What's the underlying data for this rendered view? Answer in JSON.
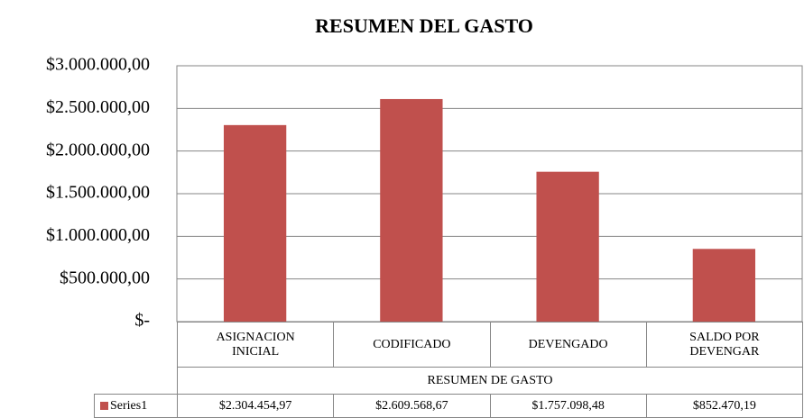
{
  "chart_data": {
    "type": "bar",
    "title": "RESUMEN DEL GASTO",
    "categories": [
      "ASIGNACION INICIAL",
      "CODIFICADO",
      "DEVENGADO",
      "SALDO POR DEVENGAR"
    ],
    "xlabel": "RESUMEN DE GASTO",
    "series": [
      {
        "name": "Series1",
        "color": "#c0504d",
        "values": [
          2304454.97,
          2609568.67,
          1757098.48,
          852470.19
        ],
        "value_labels": [
          "$2.304.454,97",
          "$2.609.568,67",
          "$1.757.098,48",
          "$852.470,19"
        ]
      }
    ],
    "ylim": [
      0,
      3000000
    ],
    "yticks": [
      {
        "value": 0,
        "label": "$-"
      },
      {
        "value": 500000,
        "label": "$500.000,00"
      },
      {
        "value": 1000000,
        "label": "$1.000.000,00"
      },
      {
        "value": 1500000,
        "label": "$1.500.000,00"
      },
      {
        "value": 2000000,
        "label": "$2.000.000,00"
      },
      {
        "value": 2500000,
        "label": "$2.500.000,00"
      },
      {
        "value": 3000000,
        "label": "$3.000.000,00"
      }
    ],
    "grid": true
  }
}
